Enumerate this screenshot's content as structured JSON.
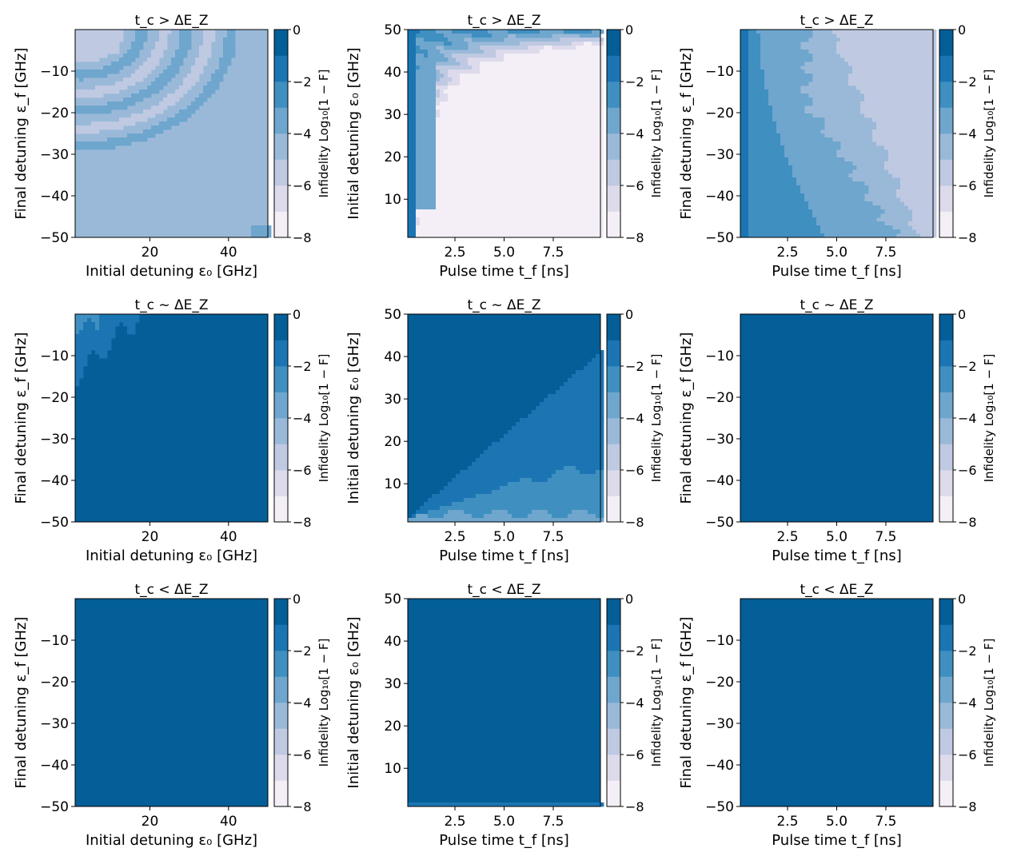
{
  "colorbar": {
    "label": "Infidelity Log₁₀[1 − F]",
    "ticks": [
      0,
      -2,
      -4,
      -6,
      -8
    ],
    "levels": [
      -8,
      -7,
      -6,
      -5,
      -4,
      -3,
      -2,
      -1,
      0
    ],
    "colors": [
      "#f4eff6",
      "#dcdaeb",
      "#bfc9e2",
      "#9ab9d8",
      "#6ea6cd",
      "#3f8fc0",
      "#1b75b3",
      "#045e97",
      "#034875"
    ]
  },
  "chart_data": [
    {
      "type": "heatmap",
      "title": "t_c > ΔE_Z",
      "xlabel": "Initial detuning ε₀ [GHz]",
      "ylabel": "Final detuning ε_f [GHz]",
      "xlim": [
        1,
        50
      ],
      "ylim": [
        -50,
        0
      ],
      "xticks": [
        20,
        40
      ],
      "yticks": [
        -10,
        -20,
        -30,
        -40,
        -50
      ],
      "clim": [
        -8,
        0
      ],
      "model": "row1_eps",
      "dominant_level": -4.5
    },
    {
      "type": "heatmap",
      "title": "t_c > ΔE_Z",
      "xlabel": "Pulse time t_f [ns]",
      "ylabel": "Initial detuning ε₀ [GHz]",
      "xlim": [
        0.1,
        9.9
      ],
      "ylim": [
        1,
        50
      ],
      "xticks": [
        2.5,
        5.0,
        7.5
      ],
      "yticks": [
        10,
        20,
        30,
        40,
        50
      ],
      "clim": [
        -8,
        0
      ],
      "model": "row1_time_eps0",
      "dominant_level": -5.0
    },
    {
      "type": "heatmap",
      "title": "t_c > ΔE_Z",
      "xlabel": "Pulse time t_f [ns]",
      "ylabel": "Final detuning ε_f [GHz]",
      "xlim": [
        0.1,
        9.9
      ],
      "ylim": [
        -50,
        0
      ],
      "xticks": [
        2.5,
        5.0,
        7.5
      ],
      "yticks": [
        -10,
        -20,
        -30,
        -40,
        -50
      ],
      "clim": [
        -8,
        0
      ],
      "model": "row1_time_epsf",
      "dominant_level": -4.5
    },
    {
      "type": "heatmap",
      "title": "t_c ~ ΔE_Z",
      "xlabel": "Initial detuning ε₀ [GHz]",
      "ylabel": "Final detuning ε_f [GHz]",
      "xlim": [
        1,
        50
      ],
      "ylim": [
        -50,
        0
      ],
      "xticks": [
        20,
        40
      ],
      "yticks": [
        -10,
        -20,
        -30,
        -40,
        -50
      ],
      "clim": [
        -8,
        0
      ],
      "model": "row2_eps",
      "dominant_level": -0.5
    },
    {
      "type": "heatmap",
      "title": "t_c ~ ΔE_Z",
      "xlabel": "Pulse time t_f [ns]",
      "ylabel": "Initial detuning ε₀ [GHz]",
      "xlim": [
        0.1,
        9.9
      ],
      "ylim": [
        1,
        50
      ],
      "xticks": [
        2.5,
        5.0,
        7.5
      ],
      "yticks": [
        10,
        20,
        30,
        40,
        50
      ],
      "clim": [
        -8,
        0
      ],
      "model": "row2_time_eps0",
      "dominant_level": -0.5
    },
    {
      "type": "heatmap",
      "title": "t_c ~ ΔE_Z",
      "xlabel": "Pulse time t_f [ns]",
      "ylabel": "Final detuning ε_f [GHz]",
      "xlim": [
        0.1,
        9.9
      ],
      "ylim": [
        -50,
        0
      ],
      "xticks": [
        2.5,
        5.0,
        7.5
      ],
      "yticks": [
        -10,
        -20,
        -30,
        -40,
        -50
      ],
      "clim": [
        -8,
        0
      ],
      "model": "uniform",
      "dominant_level": -0.5
    },
    {
      "type": "heatmap",
      "title": "t_c < ΔE_Z",
      "xlabel": "Initial detuning ε₀ [GHz]",
      "ylabel": "Final detuning ε_f [GHz]",
      "xlim": [
        1,
        50
      ],
      "ylim": [
        -50,
        0
      ],
      "xticks": [
        20,
        40
      ],
      "yticks": [
        -10,
        -20,
        -30,
        -40,
        -50
      ],
      "clim": [
        -8,
        0
      ],
      "model": "uniform",
      "dominant_level": -0.5
    },
    {
      "type": "heatmap",
      "title": "t_c < ΔE_Z",
      "xlabel": "Pulse time t_f [ns]",
      "ylabel": "Initial detuning ε₀ [GHz]",
      "xlim": [
        0.1,
        9.9
      ],
      "ylim": [
        1,
        50
      ],
      "xticks": [
        2.5,
        5.0,
        7.5
      ],
      "yticks": [
        10,
        20,
        30,
        40,
        50
      ],
      "clim": [
        -8,
        0
      ],
      "model": "row3_time_eps0",
      "dominant_level": -0.5
    },
    {
      "type": "heatmap",
      "title": "t_c < ΔE_Z",
      "xlabel": "Pulse time t_f [ns]",
      "ylabel": "Final detuning ε_f [GHz]",
      "xlim": [
        0.1,
        9.9
      ],
      "ylim": [
        -50,
        0
      ],
      "xticks": [
        2.5,
        5.0,
        7.5
      ],
      "yticks": [
        -10,
        -20,
        -30,
        -40,
        -50
      ],
      "clim": [
        -8,
        0
      ],
      "model": "uniform",
      "dominant_level": -0.5
    }
  ]
}
